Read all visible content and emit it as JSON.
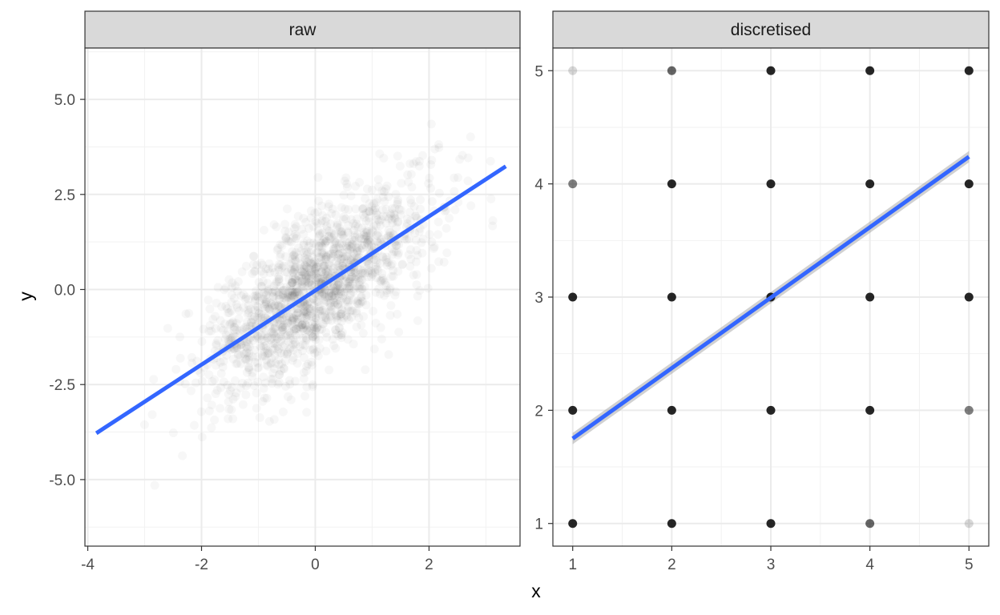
{
  "chart_data": [
    {
      "type": "scatter",
      "facet": "raw",
      "xlim": [
        -4.05,
        3.6
      ],
      "ylim": [
        -6.75,
        6.35
      ],
      "x_ticks": [
        -4,
        -2,
        0,
        2
      ],
      "x_tick_labels": [
        "-4",
        "-2",
        "0",
        "2"
      ],
      "y_ticks": [
        -5.0,
        -2.5,
        0.0,
        2.5,
        5.0
      ],
      "y_tick_labels": [
        "-5.0",
        "-2.5",
        "0.0",
        "2.5",
        "5.0"
      ],
      "point_color": "#000000",
      "point_alpha": 0.03,
      "point_approximation": {
        "count": 1600,
        "x_sd": 1.0,
        "y_equals": "x + noise",
        "noise_sd": 0.95,
        "seed": 7,
        "note_x_range": [
          -4.0,
          3.5
        ]
      },
      "fit_line": {
        "x": [
          -3.85,
          3.35
        ],
        "y": [
          -3.78,
          3.24
        ],
        "color": "#3366ff"
      }
    },
    {
      "type": "scatter",
      "facet": "discretised",
      "xlim": [
        0.8,
        5.2
      ],
      "ylim": [
        0.8,
        5.2
      ],
      "x_ticks": [
        1,
        2,
        3,
        4,
        5
      ],
      "x_tick_labels": [
        "1",
        "2",
        "3",
        "4",
        "5"
      ],
      "y_ticks": [
        1,
        2,
        3,
        4,
        5
      ],
      "y_tick_labels": [
        "1",
        "2",
        "3",
        "4",
        "5"
      ],
      "point_color": "#000000",
      "points": [
        {
          "x": 1,
          "y": 1,
          "alpha": 0.85
        },
        {
          "x": 1,
          "y": 2,
          "alpha": 0.85
        },
        {
          "x": 1,
          "y": 3,
          "alpha": 0.85
        },
        {
          "x": 1,
          "y": 4,
          "alpha": 0.5
        },
        {
          "x": 1,
          "y": 5,
          "alpha": 0.15
        },
        {
          "x": 2,
          "y": 1,
          "alpha": 0.85
        },
        {
          "x": 2,
          "y": 2,
          "alpha": 0.85
        },
        {
          "x": 2,
          "y": 3,
          "alpha": 0.85
        },
        {
          "x": 2,
          "y": 4,
          "alpha": 0.85
        },
        {
          "x": 2,
          "y": 5,
          "alpha": 0.6
        },
        {
          "x": 3,
          "y": 1,
          "alpha": 0.85
        },
        {
          "x": 3,
          "y": 2,
          "alpha": 0.85
        },
        {
          "x": 3,
          "y": 3,
          "alpha": 0.85
        },
        {
          "x": 3,
          "y": 4,
          "alpha": 0.85
        },
        {
          "x": 3,
          "y": 5,
          "alpha": 0.85
        },
        {
          "x": 4,
          "y": 1,
          "alpha": 0.6
        },
        {
          "x": 4,
          "y": 2,
          "alpha": 0.85
        },
        {
          "x": 4,
          "y": 3,
          "alpha": 0.85
        },
        {
          "x": 4,
          "y": 4,
          "alpha": 0.85
        },
        {
          "x": 4,
          "y": 5,
          "alpha": 0.85
        },
        {
          "x": 5,
          "y": 1,
          "alpha": 0.15
        },
        {
          "x": 5,
          "y": 2,
          "alpha": 0.5
        },
        {
          "x": 5,
          "y": 3,
          "alpha": 0.85
        },
        {
          "x": 5,
          "y": 4,
          "alpha": 0.85
        },
        {
          "x": 5,
          "y": 5,
          "alpha": 0.85
        }
      ],
      "fit_line": {
        "x": [
          1,
          5
        ],
        "y": [
          1.75,
          4.24
        ],
        "color": "#3366ff",
        "ci_band": {
          "x": [
            1,
            5
          ],
          "lower": [
            1.7,
            4.19
          ],
          "upper": [
            1.8,
            4.29
          ],
          "color": "#999999"
        }
      }
    }
  ],
  "facet_labels": {
    "raw": "raw",
    "discretised": "discretised"
  },
  "axis_titles": {
    "x": "x",
    "y": "y"
  }
}
